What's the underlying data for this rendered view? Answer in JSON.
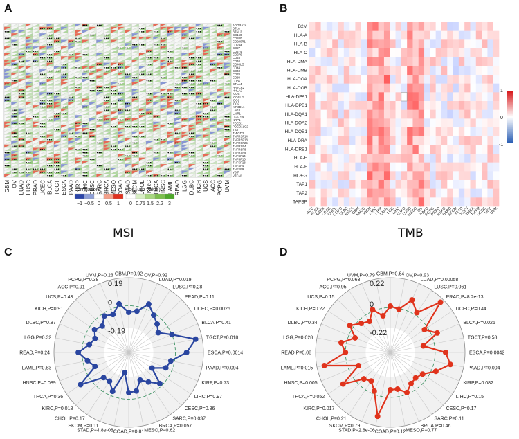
{
  "panels": {
    "a": "A",
    "b": "B",
    "c": "C",
    "d": "D"
  },
  "panel_a_title": "MSI",
  "panel_b_title": "TMB",
  "chart_data": [
    {
      "type": "heatmap",
      "id": "A",
      "columns": [
        "GBM",
        "OV",
        "LUAD",
        "LUSC",
        "PRAD",
        "UCEC",
        "BLCA",
        "TGCT",
        "ESCA",
        "PAAD",
        "KIRP",
        "LIHC",
        "CESC",
        "SARC",
        "BRCA",
        "MESO",
        "COAD",
        "STAD",
        "SKCM",
        "CHOL",
        "KIRC",
        "THCA",
        "HNSC",
        "LAML",
        "READ",
        "LGG",
        "DLBC",
        "KICH",
        "UCS",
        "ACC",
        "PCPG",
        "UVM"
      ],
      "rows": [
        "ADORA2A",
        "BTLA",
        "BTNL2",
        "CD160",
        "CD200",
        "CD200R1",
        "CD244",
        "CD27",
        "CD274",
        "CD276",
        "CD28",
        "CD40",
        "CD40LG",
        "CD44",
        "CD48",
        "CD70",
        "CD80",
        "CD86",
        "CTLA4",
        "HAVCR2",
        "HHLA2",
        "ICOS",
        "ICOSLG",
        "IDO1",
        "IDO2",
        "KIR3DL1",
        "LAG3",
        "LAIR1",
        "LGALS9",
        "NRP1",
        "PDCD1",
        "PDCD1LG2",
        "TIGIT",
        "TMIGD2",
        "TNFRSF14",
        "TNFRSF18",
        "TNFRSF25",
        "TNFRSF4",
        "TNFRSF8",
        "TNFRSF9",
        "TNFSF14",
        "TNFSF15",
        "TNFSF18",
        "TNFSF4",
        "TNFSF9",
        "VSIR",
        "VTCN1"
      ],
      "legend": {
        "correlation_title": "correlation",
        "correlation_ticks": [
          "−1",
          "−0.5",
          "0",
          "0.5",
          "1"
        ],
        "pvalue_title": "−log10(p value)",
        "pvalue_ticks": [
          "0",
          "0.75",
          "1.5",
          "2.2",
          "3"
        ],
        "correlation_colors": [
          "#2c45a8",
          "#8fa0d8",
          "#ffffff",
          "#f3a08a",
          "#e0301e"
        ],
        "pvalue_colors": [
          "#ffffff",
          "#d8eec4",
          "#a8d880",
          "#7cc04c",
          "#4ea82a"
        ]
      }
    },
    {
      "type": "heatmap",
      "id": "B",
      "rows": [
        "B2M",
        "HLA-A",
        "HLA-B",
        "HLA-C",
        "HLA-DMA",
        "HLA-DMB",
        "HLA-DOA",
        "HLA-DOB",
        "HLA-DPA1",
        "HLA-DPB1",
        "HLA-DQA1",
        "HLA-DQA2",
        "HLA-DQB1",
        "HLA-DRA",
        "HLA-DRB1",
        "HLA-E",
        "HLA-F",
        "HLA-G",
        "TAP1",
        "TAP2",
        "TAPBP"
      ],
      "columns": [
        "ACC",
        "BLCA",
        "BRCA",
        "CESC",
        "CHOL",
        "COAD",
        "DLBC",
        "ESCA",
        "GBM",
        "HNSC",
        "KICH",
        "KIRC",
        "KIRP",
        "LAML",
        "LGG",
        "LIHC",
        "LUAD",
        "LUSC",
        "MESO",
        "OV",
        "PAAD",
        "PCPG",
        "PRAD",
        "READ",
        "SARC",
        "SKCM",
        "STAD",
        "TGCT",
        "THCA",
        "THYM",
        "UCEC",
        "UCS",
        "UVM"
      ],
      "scale": {
        "max_label": "1",
        "mid_label": "0",
        "min_label": "-1",
        "colors": [
          "#d7191c",
          "#ffffff",
          "#2b5fb4"
        ]
      }
    },
    {
      "type": "radar",
      "id": "C",
      "color": "#2a46a0",
      "axis_labels": [
        "0.19",
        "0",
        "-0.19"
      ],
      "range": [
        -0.5,
        0.3
      ],
      "categories": [
        "GBM,P=0.92",
        "OV,P=0.92",
        "LUAD,P=0.019",
        "LUSC,P=0.28",
        "PRAD,P=0.11",
        "UCEC,P=0.0026",
        "BLCA,P=0.41",
        "TGCT,P=0.018",
        "ESCA,P=0.0014",
        "PAAD,P=0.094",
        "KIRP,P=0.73",
        "LIHC,P=0.97",
        "CESC,P=0.86",
        "SARC,P=0.037",
        "BRCA,P=0.057",
        "MESO,P=0.62",
        "COAD,P=0.81",
        "STAD,P=4.8e-08",
        "SKCM,P=0.11",
        "CHOL,P=0.17",
        "KIRC,P=0.018",
        "THCA,P=0.36",
        "HNSC,P=0.089",
        "LAML,P=0.83",
        "READ,P=0.24",
        "LGG,P=0.32",
        "DLBC,P=0.87",
        "KICH,P=0.91",
        "UCS,P=0.43",
        "ACC,P=0.91",
        "PCPG,P=0.38",
        "UVM,P=0.23"
      ],
      "values": [
        -0.07,
        -0.05,
        0.06,
        -0.02,
        -0.07,
        -0.12,
        0.0,
        0.23,
        0.12,
        -0.04,
        -0.07,
        -0.2,
        -0.03,
        -0.12,
        -0.18,
        -0.08,
        -0.07,
        -0.28,
        -0.05,
        -0.13,
        -0.12,
        0.12,
        -0.11,
        -0.05,
        0.04,
        -0.07,
        -0.11,
        -0.06,
        -0.1,
        -0.03,
        -0.06,
        0.03
      ]
    },
    {
      "type": "radar",
      "id": "D",
      "color": "#e0331c",
      "axis_labels": [
        "0.22",
        "0",
        "-0.22"
      ],
      "range": [
        -0.6,
        0.4
      ],
      "categories": [
        "GBM,P=0.64",
        "OV,P=0.93",
        "LUAD,P=0.00058",
        "LUSC,P=0.061",
        "PRAD,P=8.2e-13",
        "UCEC,P=0.44",
        "BLCA,P=0.026",
        "TGCT,P=0.58",
        "ESCA,P=0.0042",
        "PAAD,P=0.004",
        "KIRP,P=0.082",
        "LIHC,P=0.15",
        "CESC,P=0.17",
        "SARC,P=0.11",
        "BRCA,P=0.46",
        "MESO,P=0.77",
        "COAD,P=0.12",
        "STAD,P=2.8e-06",
        "SKCM,P=0.79",
        "CHOL,P=0.21",
        "KIRC,P=0.017",
        "THCA,P=0.052",
        "HNSC,P=0.005",
        "LAML,P=0.015",
        "READ,P=0.08",
        "LGG,P=0.028",
        "DLBC,P=0.34",
        "KICH,P=0.22",
        "UCS,P=0.15",
        "ACC,P=0.95",
        "PCPG,P=0.063",
        "UVM,P=0.79"
      ],
      "values": [
        0.02,
        -0.01,
        0.16,
        0.04,
        0.35,
        -0.05,
        0.08,
        -0.15,
        0.14,
        0.22,
        0.06,
        -0.08,
        -0.12,
        -0.1,
        -0.02,
        -0.1,
        -0.1,
        0.27,
        -0.04,
        -0.14,
        -0.1,
        0.16,
        -0.14,
        0.3,
        0.0,
        0.07,
        -0.09,
        0.05,
        -0.05,
        -0.1,
        0.02,
        -0.1
      ]
    }
  ]
}
